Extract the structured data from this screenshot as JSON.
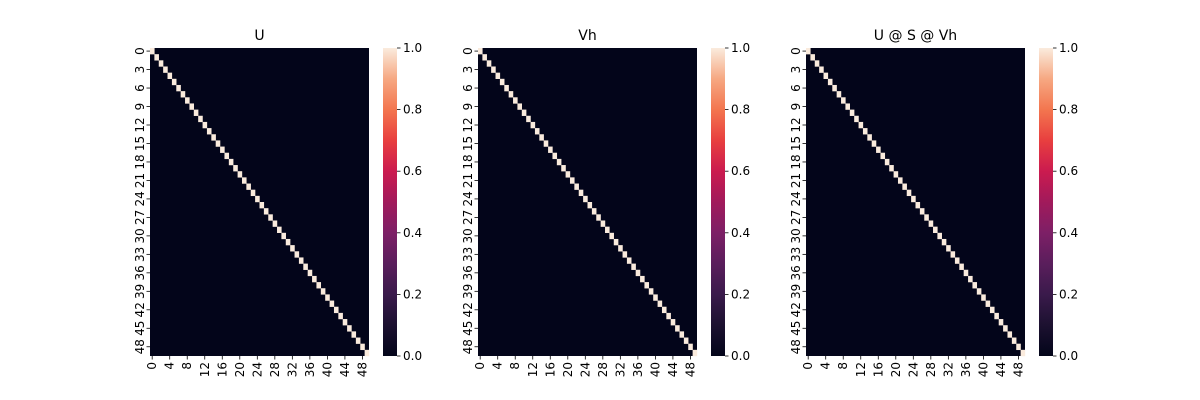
{
  "chart_data": [
    {
      "type": "heatmap",
      "title": "U",
      "matrix": "identity",
      "size": 50,
      "diagonal_value": 1.0,
      "off_diagonal_value": 0.0,
      "x_ticks": [
        "0",
        "4",
        "8",
        "12",
        "16",
        "20",
        "24",
        "28",
        "32",
        "36",
        "40",
        "44",
        "48"
      ],
      "y_ticks": [
        "0",
        "3",
        "6",
        "9",
        "12",
        "15",
        "18",
        "21",
        "24",
        "27",
        "30",
        "33",
        "36",
        "39",
        "42",
        "45",
        "48"
      ],
      "colorbar": {
        "min": 0.0,
        "max": 1.0,
        "ticks": [
          "0.0",
          "0.2",
          "0.4",
          "0.6",
          "0.8",
          "1.0"
        ],
        "colormap": "rocket"
      },
      "grid": false
    },
    {
      "type": "heatmap",
      "title": "Vh",
      "matrix": "identity",
      "size": 50,
      "diagonal_value": 1.0,
      "off_diagonal_value": 0.0,
      "x_ticks": [
        "0",
        "4",
        "8",
        "12",
        "16",
        "20",
        "24",
        "28",
        "32",
        "36",
        "40",
        "44",
        "48"
      ],
      "y_ticks": [
        "0",
        "3",
        "6",
        "9",
        "12",
        "15",
        "18",
        "21",
        "24",
        "27",
        "30",
        "33",
        "36",
        "39",
        "42",
        "45",
        "48"
      ],
      "colorbar": {
        "min": 0.0,
        "max": 1.0,
        "ticks": [
          "0.0",
          "0.2",
          "0.4",
          "0.6",
          "0.8",
          "1.0"
        ],
        "colormap": "rocket"
      },
      "grid": false
    },
    {
      "type": "heatmap",
      "title": "U @ S @ Vh",
      "matrix": "identity",
      "size": 50,
      "diagonal_value": 1.0,
      "off_diagonal_value": 0.0,
      "x_ticks": [
        "0",
        "4",
        "8",
        "12",
        "16",
        "20",
        "24",
        "28",
        "32",
        "36",
        "40",
        "44",
        "48"
      ],
      "y_ticks": [
        "0",
        "3",
        "6",
        "9",
        "12",
        "15",
        "18",
        "21",
        "24",
        "27",
        "30",
        "33",
        "36",
        "39",
        "42",
        "45",
        "48"
      ],
      "colorbar": {
        "min": 0.0,
        "max": 1.0,
        "ticks": [
          "0.0",
          "0.2",
          "0.4",
          "0.6",
          "0.8",
          "1.0"
        ],
        "colormap": "rocket"
      },
      "grid": false
    }
  ],
  "colors": {
    "background": "#ffffff",
    "low": "#03051a",
    "high": "#faebdd"
  }
}
